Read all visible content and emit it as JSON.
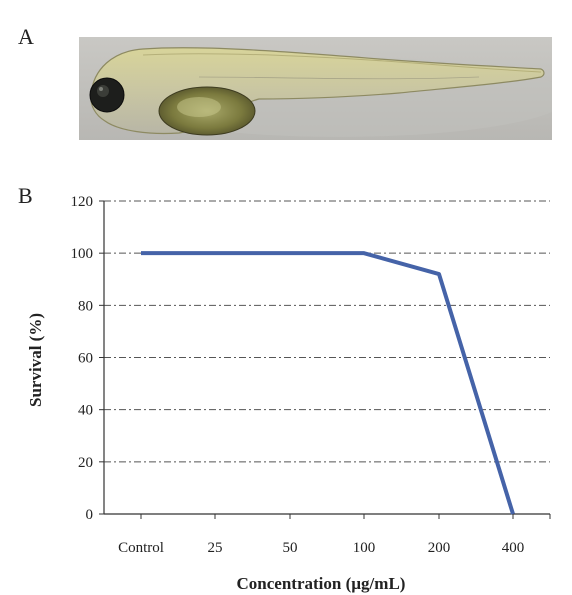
{
  "panels": {
    "a": "A",
    "b": "B"
  },
  "colors": {
    "line": "#4563a8",
    "grid": "#555555",
    "axis": "#333333"
  },
  "chart_data": {
    "type": "line",
    "categories": [
      "Control",
      "25",
      "50",
      "100",
      "200",
      "400"
    ],
    "series": [
      {
        "values": [
          100,
          100,
          100,
          100,
          92,
          0
        ]
      }
    ],
    "xlabel": "Concentration (µg/mL)",
    "ylabel": "Survival (%)",
    "ylim": [
      0,
      120
    ],
    "yticks": [
      0,
      20,
      40,
      60,
      80,
      100,
      120
    ],
    "grid": "horizontal dash-dot"
  }
}
